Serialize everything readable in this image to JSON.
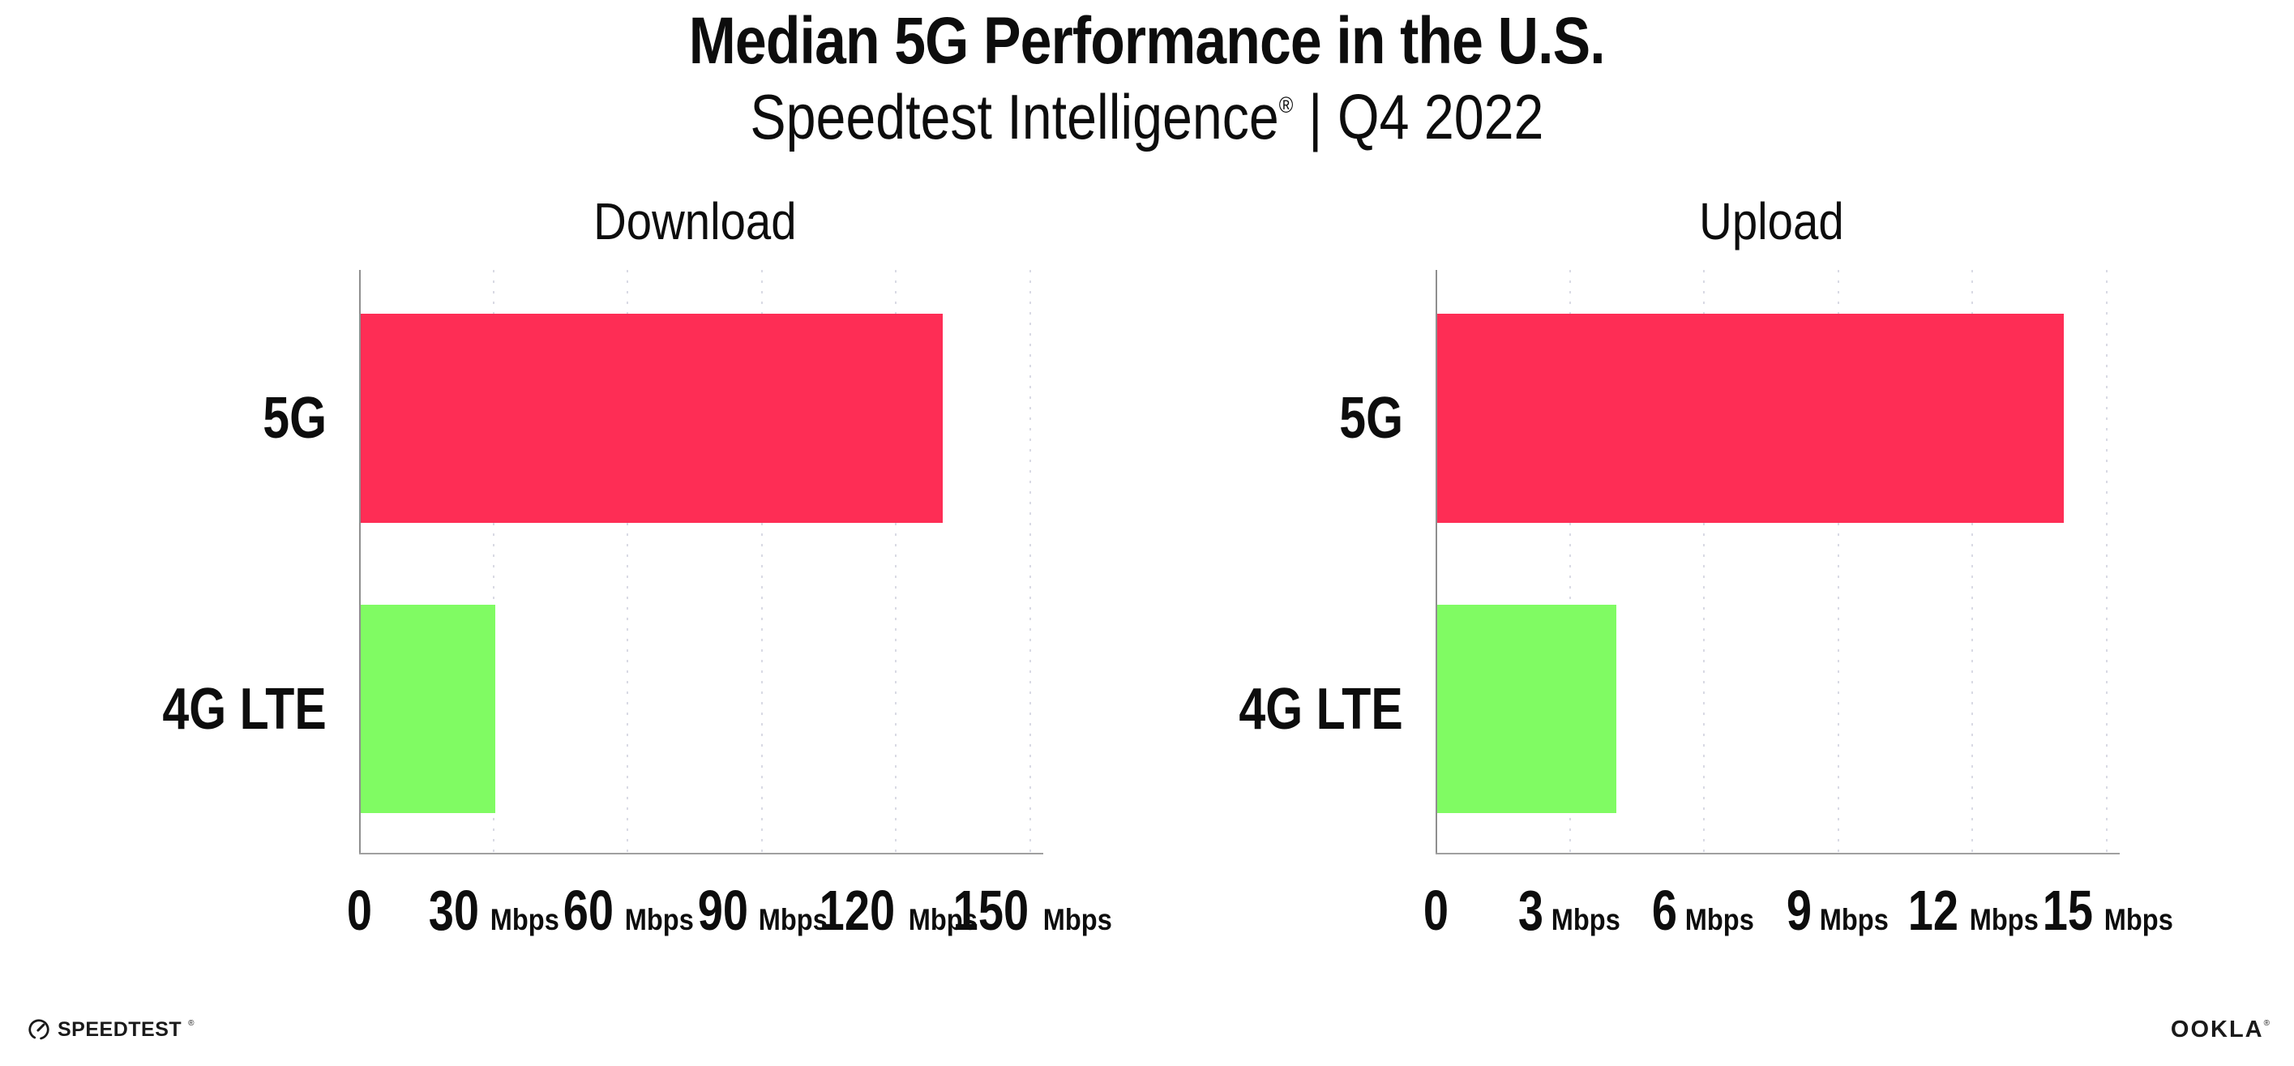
{
  "header": {
    "title": "Median 5G Performance in the U.S.",
    "subtitle_brand": "Speedtest Intelligence",
    "subtitle_registered": "®",
    "subtitle_separator": "|",
    "subtitle_period": "Q4 2022"
  },
  "chart_data": [
    {
      "type": "bar",
      "orientation": "horizontal",
      "title": "Download",
      "categories": [
        "5G",
        "4G LTE"
      ],
      "values": [
        130,
        30
      ],
      "unit": "Mbps",
      "xlim": [
        0,
        150
      ],
      "xticks": [
        0,
        30,
        60,
        90,
        120,
        150
      ],
      "bar_colors": [
        "#fe2d55",
        "#80fb63"
      ],
      "grid": "dotted-vertical",
      "legend": "none"
    },
    {
      "type": "bar",
      "orientation": "horizontal",
      "title": "Upload",
      "categories": [
        "5G",
        "4G LTE"
      ],
      "values": [
        14,
        4
      ],
      "unit": "Mbps",
      "xlim": [
        0,
        15
      ],
      "xticks": [
        0,
        3,
        6,
        9,
        12,
        15
      ],
      "bar_colors": [
        "#fe2d55",
        "#80fb63"
      ],
      "grid": "dotted-vertical",
      "legend": "none"
    }
  ],
  "footer": {
    "speedtest_label": "SPEEDTEST",
    "speedtest_registered": "®",
    "ookla_label": "OOKLA",
    "ookla_registered": "®"
  },
  "colors": {
    "bar_5g": "#fe2d55",
    "bar_4g_lte": "#80fb63",
    "axis": "#8f8f8f",
    "gridline": "#d9dae4",
    "text": "#0d0d0d",
    "background": "#ffffff"
  },
  "icons": {
    "speedtest_logo": "gauge-icon (circle with needle pointing up-right)"
  }
}
